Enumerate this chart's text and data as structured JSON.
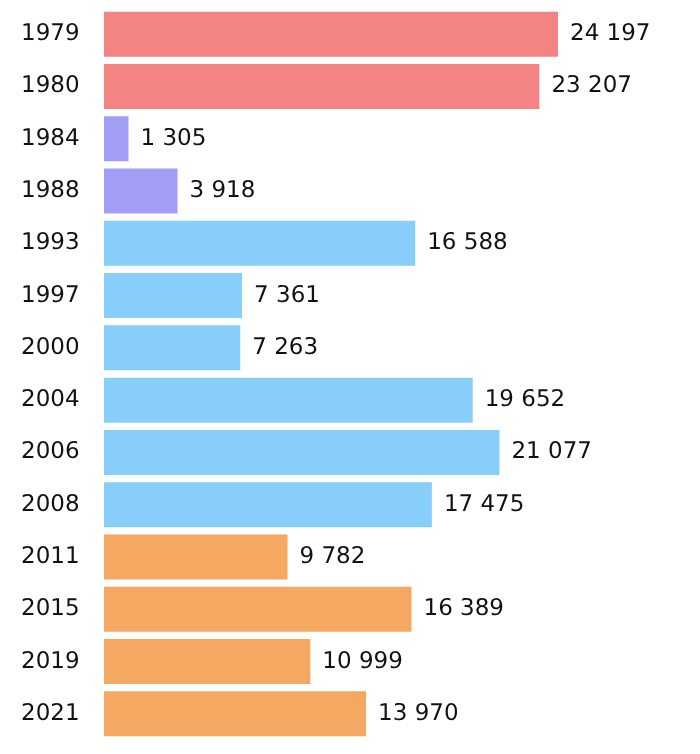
{
  "chart_data": {
    "type": "bar",
    "orientation": "horizontal",
    "categories": [
      "1979",
      "1980",
      "1984",
      "1988",
      "1993",
      "1997",
      "2000",
      "2004",
      "2006",
      "2008",
      "2011",
      "2015",
      "2019",
      "2021"
    ],
    "values": [
      24197,
      23207,
      1305,
      3918,
      16588,
      7361,
      7263,
      19652,
      21077,
      17475,
      9782,
      16389,
      10999,
      13970
    ],
    "value_labels": [
      "24 197",
      "23 207",
      "1 305",
      "3 918",
      "16 588",
      "7 361",
      "7 263",
      "19 652",
      "21 077",
      "17 475",
      "9 782",
      "16 389",
      "10 999",
      "13 970"
    ],
    "colors": [
      "#f48484",
      "#f48484",
      "#a39ef5",
      "#a39ef5",
      "#88cefa",
      "#88cefa",
      "#88cefa",
      "#88cefa",
      "#88cefa",
      "#88cefa",
      "#f4a862",
      "#f4a862",
      "#f4a862",
      "#f4a862"
    ]
  }
}
